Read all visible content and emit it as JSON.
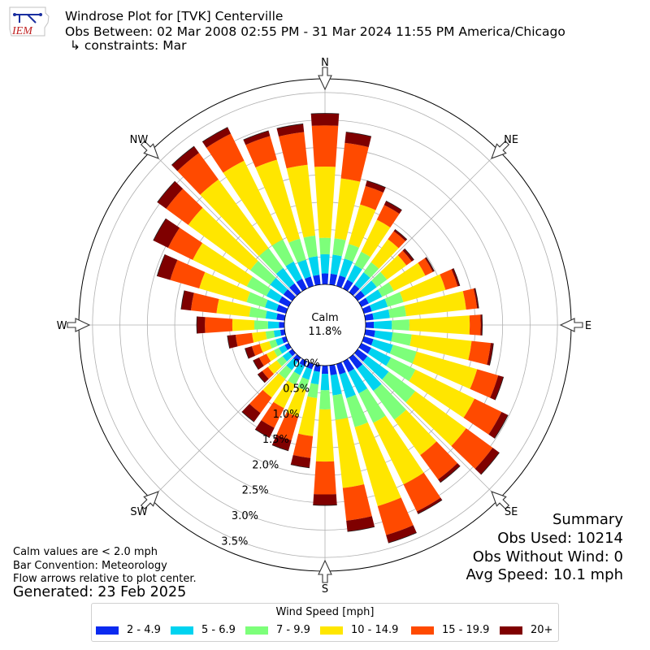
{
  "header": {
    "title": "Windrose Plot for [TVK] Centerville",
    "obs_between": "Obs Between: 02 Mar 2008 02:55 PM - 31 Mar 2024 11:55 PM America/Chicago",
    "constraints": "↳ constraints: Mar",
    "logo_text": "IEM"
  },
  "notes": {
    "calm_note": "Calm values are < 2.0 mph",
    "bar_convention": "Bar Convention: Meteorology",
    "flow_arrows": "Flow arrows relative to plot center.",
    "generated": "Generated: 23 Feb 2025"
  },
  "summary": {
    "title": "Summary",
    "obs_used": "Obs Used: 10214",
    "obs_without_wind": "Obs Without Wind: 0",
    "avg_speed": "Avg Speed: 10.1 mph"
  },
  "chart_data": {
    "type": "windrose",
    "calm_label": "Calm",
    "calm_value": "11.8%",
    "calm_percent": 11.8,
    "direction_labels": [
      "N",
      "NE",
      "E",
      "SE",
      "S",
      "SW",
      "W",
      "NW"
    ],
    "radial_ticks": [
      0.0,
      0.5,
      1.0,
      1.5,
      2.0,
      2.5,
      3.0,
      3.5
    ],
    "radial_tick_labels": [
      "0.0%",
      "0.5%",
      "1.0%",
      "1.5%",
      "2.0%",
      "2.5%",
      "3.0%",
      "3.5%"
    ],
    "radial_max": 3.75,
    "units": "percent of observations",
    "directions_deg": [
      0,
      10,
      20,
      30,
      40,
      50,
      60,
      70,
      80,
      90,
      100,
      110,
      120,
      130,
      140,
      150,
      160,
      170,
      180,
      190,
      200,
      210,
      220,
      230,
      240,
      250,
      260,
      270,
      280,
      290,
      300,
      310,
      320,
      330,
      340,
      350
    ],
    "legend_title": "Wind Speed [mph]",
    "bins": [
      {
        "label": "2 - 4.9",
        "color": "#0a2af0"
      },
      {
        "label": "5 - 6.9",
        "color": "#00d3f0"
      },
      {
        "label": "7 - 9.9",
        "color": "#7dff7a"
      },
      {
        "label": "10 - 14.9",
        "color": "#ffe600"
      },
      {
        "label": "15 - 19.9",
        "color": "#ff4a00"
      },
      {
        "label": "20+",
        "color": "#7f0000"
      }
    ],
    "cumulative": [
      [
        0.2,
        0.55,
        0.85,
        2.15,
        2.9,
        3.12
      ],
      [
        0.2,
        0.55,
        0.85,
        1.95,
        2.6,
        2.8
      ],
      [
        0.2,
        0.52,
        0.8,
        1.55,
        1.9,
        2.0
      ],
      [
        0.18,
        0.48,
        0.75,
        1.4,
        1.7,
        1.78
      ],
      [
        0.17,
        0.45,
        0.68,
        1.2,
        1.38,
        1.42
      ],
      [
        0.16,
        0.43,
        0.66,
        1.1,
        1.22,
        1.27
      ],
      [
        0.15,
        0.42,
        0.66,
        1.3,
        1.45,
        1.48
      ],
      [
        0.15,
        0.45,
        0.75,
        1.55,
        1.78,
        1.82
      ],
      [
        0.15,
        0.45,
        0.75,
        1.85,
        2.05,
        2.08
      ],
      [
        0.15,
        0.48,
        0.8,
        1.9,
        2.1,
        2.13
      ],
      [
        0.18,
        0.5,
        0.85,
        1.95,
        2.3,
        2.35
      ],
      [
        0.18,
        0.55,
        1.0,
        2.15,
        2.55,
        2.65
      ],
      [
        0.2,
        0.6,
        1.1,
        2.3,
        2.85,
        2.98
      ],
      [
        0.22,
        0.7,
        1.3,
        2.45,
        3.05,
        3.2
      ],
      [
        0.25,
        0.75,
        1.4,
        2.2,
        2.75,
        2.82
      ],
      [
        0.22,
        0.65,
        1.25,
        2.5,
        3.05,
        3.1
      ],
      [
        0.2,
        0.65,
        1.2,
        2.7,
        3.25,
        3.4
      ],
      [
        0.18,
        0.55,
        1.0,
        2.25,
        2.85,
        3.05
      ],
      [
        0.15,
        0.45,
        0.8,
        1.75,
        2.35,
        2.55
      ],
      [
        0.12,
        0.35,
        0.6,
        1.3,
        1.7,
        1.88
      ],
      [
        0.1,
        0.3,
        0.5,
        1.0,
        1.45,
        1.65
      ],
      [
        0.1,
        0.28,
        0.48,
        0.95,
        1.35,
        1.55
      ],
      [
        0.1,
        0.28,
        0.48,
        0.9,
        1.25,
        1.45
      ],
      [
        0.08,
        0.22,
        0.35,
        0.55,
        0.68,
        0.78
      ],
      [
        0.08,
        0.2,
        0.3,
        0.45,
        0.6,
        0.72
      ],
      [
        0.08,
        0.2,
        0.32,
        0.5,
        0.65,
        0.78
      ],
      [
        0.08,
        0.2,
        0.35,
        0.6,
        0.9,
        1.05
      ],
      [
        0.1,
        0.3,
        0.55,
        0.95,
        1.45,
        1.6
      ],
      [
        0.15,
        0.35,
        0.65,
        1.25,
        1.72,
        1.9
      ],
      [
        0.18,
        0.4,
        0.75,
        1.65,
        2.2,
        2.45
      ],
      [
        0.2,
        0.45,
        0.85,
        1.95,
        2.45,
        2.75
      ],
      [
        0.2,
        0.5,
        0.95,
        2.35,
        2.85,
        3.05
      ],
      [
        0.2,
        0.55,
        1.0,
        2.55,
        3.15,
        3.3
      ],
      [
        0.2,
        0.55,
        1.0,
        2.6,
        3.15,
        3.28
      ],
      [
        0.18,
        0.5,
        0.9,
        2.4,
        2.85,
        2.95
      ],
      [
        0.18,
        0.52,
        0.9,
        2.2,
        2.8,
        2.95
      ]
    ]
  }
}
